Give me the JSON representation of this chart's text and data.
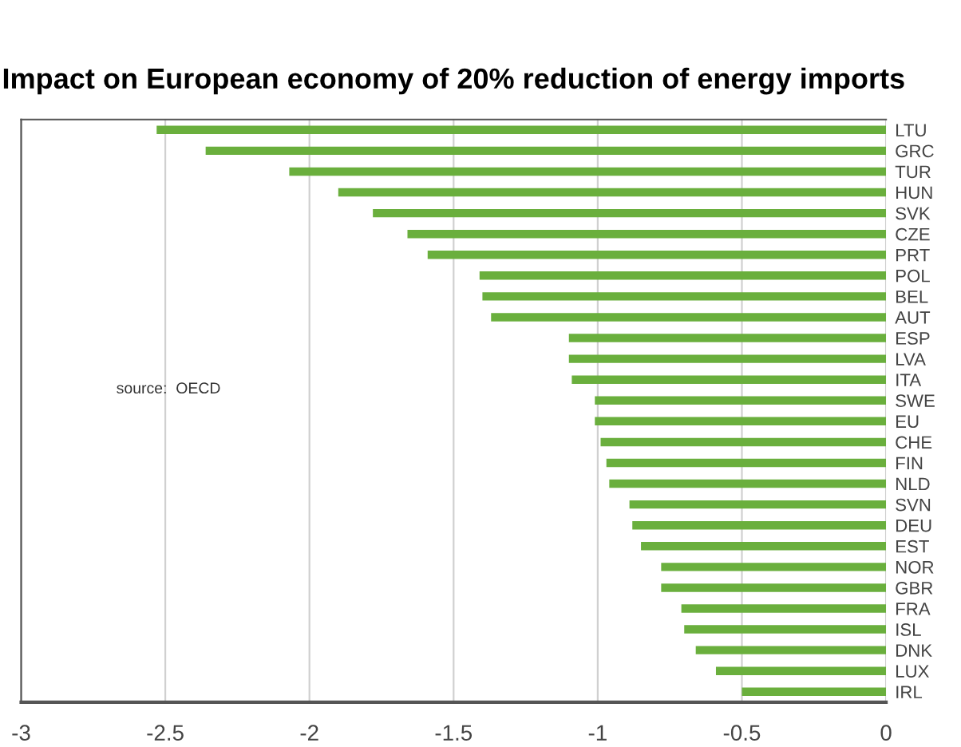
{
  "chart_data": {
    "type": "bar",
    "orientation": "horizontal",
    "title": "Impact on European economy of 20% reduction of energy imports",
    "categories": [
      "LTU",
      "GRC",
      "TUR",
      "HUN",
      "SVK",
      "CZE",
      "PRT",
      "POL",
      "BEL",
      "AUT",
      "ESP",
      "LVA",
      "ITA",
      "SWE",
      "EU",
      "CHE",
      "FIN",
      "NLD",
      "SVN",
      "DEU",
      "EST",
      "NOR",
      "GBR",
      "FRA",
      "ISL",
      "DNK",
      "LUX",
      "IRL"
    ],
    "values": [
      -2.53,
      -2.36,
      -2.07,
      -1.9,
      -1.78,
      -1.66,
      -1.59,
      -1.41,
      -1.4,
      -1.37,
      -1.1,
      -1.1,
      -1.09,
      -1.01,
      -1.01,
      -0.99,
      -0.97,
      -0.96,
      -0.89,
      -0.88,
      -0.85,
      -0.78,
      -0.78,
      -0.71,
      -0.7,
      -0.66,
      -0.59,
      -0.5
    ],
    "color": "#6aaf3d",
    "xlim": [
      -3,
      0
    ],
    "xticks": [
      -3,
      -2.5,
      -2,
      -1.5,
      -1,
      -0.5,
      0
    ],
    "grid": "x",
    "annotations": [
      "source:  OECD"
    ]
  }
}
